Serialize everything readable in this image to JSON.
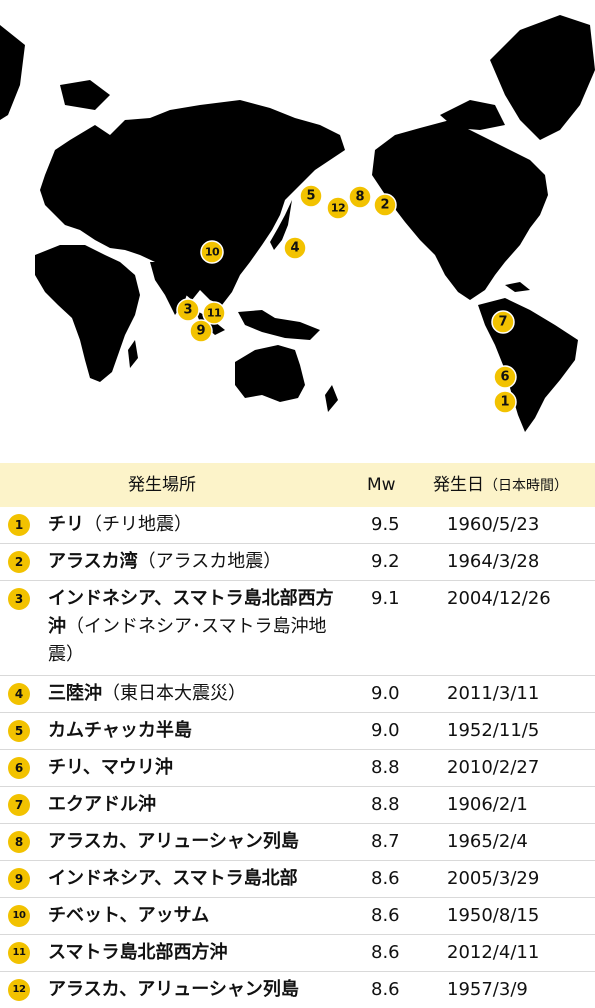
{
  "map": {
    "land_color": "#000000",
    "marker_color": "#f2c200",
    "markers": [
      {
        "label": "1"
      },
      {
        "label": "2"
      },
      {
        "label": "3"
      },
      {
        "label": "4"
      },
      {
        "label": "5"
      },
      {
        "label": "6"
      },
      {
        "label": "7"
      },
      {
        "label": "8"
      },
      {
        "label": "9"
      },
      {
        "label": "10"
      },
      {
        "label": "11"
      },
      {
        "label": "12"
      }
    ]
  },
  "table": {
    "header_background": "#fcf3c9",
    "headers": {
      "place": "発生場所",
      "mw": "Mw",
      "date": "発生日",
      "date_note": "（日本時間）"
    },
    "rows": [
      {
        "num": "1",
        "place": "チリ",
        "note": "（チリ地震）",
        "mw": "9.5",
        "date": "1960/5/23"
      },
      {
        "num": "2",
        "place": "アラスカ湾",
        "note": "（アラスカ地震）",
        "mw": "9.2",
        "date": "1964/3/28"
      },
      {
        "num": "3",
        "place": "インドネシア、スマトラ島北部西方沖",
        "note": "（インドネシア･スマトラ島沖地震）",
        "mw": "9.1",
        "date": "2004/12/26"
      },
      {
        "num": "4",
        "place": "三陸沖",
        "note": "（東日本大震災）",
        "mw": "9.0",
        "date": "2011/3/11"
      },
      {
        "num": "5",
        "place": "カムチャッカ半島",
        "note": "",
        "mw": "9.0",
        "date": "1952/11/5"
      },
      {
        "num": "6",
        "place": "チリ、マウリ沖",
        "note": "",
        "mw": "8.8",
        "date": "2010/2/27"
      },
      {
        "num": "7",
        "place": "エクアドル沖",
        "note": "",
        "mw": "8.8",
        "date": "1906/2/1"
      },
      {
        "num": "8",
        "place": "アラスカ、アリューシャン列島",
        "note": "",
        "mw": "8.7",
        "date": "1965/2/4"
      },
      {
        "num": "9",
        "place": "インドネシア、スマトラ島北部",
        "note": "",
        "mw": "8.6",
        "date": "2005/3/29"
      },
      {
        "num": "10",
        "place": "チベット、アッサム",
        "note": "",
        "mw": "8.6",
        "date": "1950/8/15"
      },
      {
        "num": "11",
        "place": "スマトラ島北部西方沖",
        "note": "",
        "mw": "8.6",
        "date": "2012/4/11"
      },
      {
        "num": "12",
        "place": "アラスカ、アリューシャン列島",
        "note": "",
        "mw": "8.6",
        "date": "1957/3/9"
      }
    ]
  }
}
